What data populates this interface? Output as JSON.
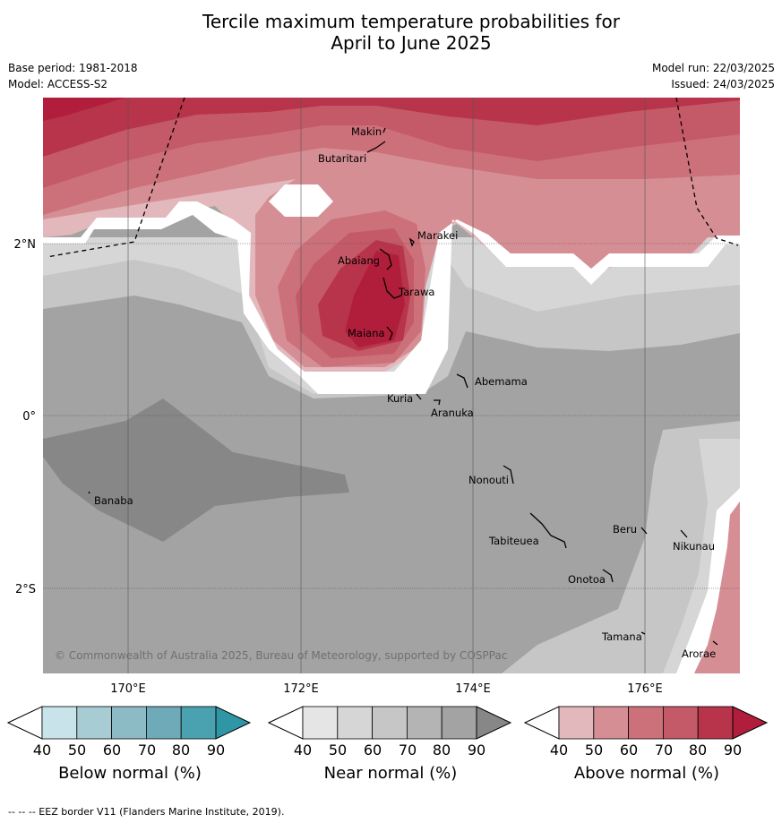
{
  "title_line1": "Tercile maximum temperature probabilities for",
  "title_line2": "April to June 2025",
  "meta_left": {
    "base_period": "Base period: 1981-2018",
    "model": "Model: ACCESS-S2"
  },
  "meta_right": {
    "model_run": "Model run: 22/03/2025",
    "issued": "Issued: 24/03/2025"
  },
  "axes": {
    "lat_labels": [
      "2°N",
      "0°",
      "2°S"
    ],
    "lon_labels": [
      "170°E",
      "172°E",
      "174°E",
      "176°E"
    ]
  },
  "places": [
    {
      "name": "Makin"
    },
    {
      "name": "Butaritari"
    },
    {
      "name": "Marakei"
    },
    {
      "name": "Abaiang"
    },
    {
      "name": "Tarawa"
    },
    {
      "name": "Maiana"
    },
    {
      "name": "Abemama"
    },
    {
      "name": "Kuria"
    },
    {
      "name": "Aranuka"
    },
    {
      "name": "Nonouti"
    },
    {
      "name": "Banaba"
    },
    {
      "name": "Beru"
    },
    {
      "name": "Nikunau"
    },
    {
      "name": "Tabiteuea"
    },
    {
      "name": "Onotoa"
    },
    {
      "name": "Tamana"
    },
    {
      "name": "Arorae"
    }
  ],
  "copyright": "© Commonwealth of Australia 2025, Bureau of Meteorology, supported by COSPPac",
  "colorbars": [
    {
      "label": "Below normal (%)",
      "ticks": [
        "40",
        "50",
        "60",
        "70",
        "80",
        "90"
      ],
      "colors": [
        "#c9e3ea",
        "#a8ccd4",
        "#8cbac5",
        "#6eaab7",
        "#4aa2b0",
        "#2f96a6"
      ]
    },
    {
      "label": "Near normal (%)",
      "ticks": [
        "40",
        "50",
        "60",
        "70",
        "80",
        "90"
      ],
      "colors": [
        "#e5e5e5",
        "#d6d6d6",
        "#c6c6c6",
        "#b4b4b4",
        "#a3a3a3",
        "#878787"
      ]
    },
    {
      "label": "Above normal (%)",
      "ticks": [
        "40",
        "50",
        "60",
        "70",
        "80",
        "90"
      ],
      "colors": [
        "#e3b8bd",
        "#d68e95",
        "#cc707a",
        "#c45a67",
        "#b8344a",
        "#b01e3c"
      ]
    }
  ],
  "footer": "--  --  -- EEZ border V11 (Flanders Marine Institute, 2019)."
}
